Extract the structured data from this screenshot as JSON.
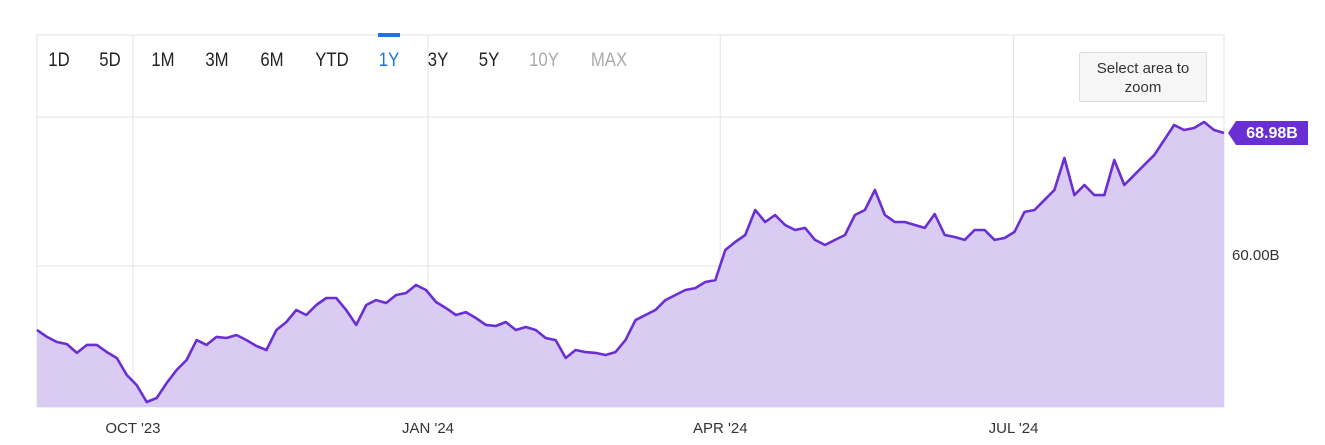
{
  "toolbar": {
    "ranges": [
      {
        "label": "1D",
        "state": "normal"
      },
      {
        "label": "5D",
        "state": "normal"
      },
      {
        "label": "1M",
        "state": "normal"
      },
      {
        "label": "3M",
        "state": "normal"
      },
      {
        "label": "6M",
        "state": "normal"
      },
      {
        "label": "YTD",
        "state": "normal"
      },
      {
        "label": "1Y",
        "state": "active"
      },
      {
        "label": "3Y",
        "state": "normal"
      },
      {
        "label": "5Y",
        "state": "normal"
      },
      {
        "label": "10Y",
        "state": "disabled"
      },
      {
        "label": "MAX",
        "state": "disabled"
      }
    ],
    "zoom_button": "Select area to zoom"
  },
  "chart_data": {
    "type": "area",
    "values": [
      55.68,
      55.21,
      54.87,
      54.73,
      54.13,
      54.67,
      54.67,
      54.19,
      53.79,
      52.64,
      51.96,
      50.82,
      51.09,
      52.1,
      52.98,
      53.65,
      55.0,
      54.67,
      55.21,
      55.14,
      55.34,
      55.0,
      54.6,
      54.33,
      55.68,
      56.22,
      57.03,
      56.69,
      57.37,
      57.84,
      57.84,
      57.03,
      56.02,
      57.37,
      57.7,
      57.5,
      58.04,
      58.18,
      58.72,
      58.38,
      57.57,
      57.16,
      56.69,
      56.89,
      56.49,
      56.02,
      55.95,
      56.22,
      55.68,
      55.88,
      55.68,
      55.14,
      55.0,
      53.79,
      54.33,
      54.19,
      54.13,
      53.99,
      54.19,
      55.0,
      56.35,
      56.69,
      57.03,
      57.7,
      58.04,
      58.38,
      58.51,
      58.92,
      59.05,
      61.08,
      61.62,
      62.09,
      63.78,
      62.97,
      63.44,
      62.77,
      62.43,
      62.57,
      61.76,
      61.42,
      61.76,
      62.09,
      63.44,
      63.78,
      65.13,
      63.44,
      62.97,
      62.97,
      62.77,
      62.57,
      63.51,
      62.09,
      61.96,
      61.76,
      62.43,
      62.43,
      61.76,
      61.89,
      62.3,
      63.65,
      63.78,
      64.46,
      65.13,
      67.29,
      64.79,
      65.47,
      64.79,
      64.79,
      67.16,
      65.47,
      66.14,
      66.82,
      67.49,
      68.51,
      69.52,
      69.18,
      69.32,
      69.72,
      69.18,
      68.98
    ],
    "value_labels": [
      null,
      null,
      null,
      null,
      null,
      null,
      null,
      null,
      null,
      null,
      null,
      null,
      null,
      null,
      null,
      null,
      null,
      null,
      null,
      null,
      null,
      null,
      null,
      null,
      null,
      null,
      null,
      null,
      null,
      null,
      null,
      null,
      null,
      null,
      null,
      null,
      null,
      null,
      null,
      null,
      null,
      null,
      null,
      null,
      null,
      null,
      null,
      null,
      null,
      null,
      null,
      null,
      null,
      null,
      null,
      null,
      null,
      null,
      null,
      null,
      null,
      null,
      null,
      null,
      null,
      null,
      null,
      null,
      null,
      null,
      null,
      null,
      null,
      null,
      null,
      null,
      null,
      null,
      null,
      null,
      null,
      null,
      null,
      null,
      null,
      null,
      null,
      null,
      null,
      null,
      null,
      null,
      null,
      null,
      null,
      null,
      null,
      null,
      null,
      null,
      null,
      null,
      null,
      null,
      null,
      null,
      null,
      null,
      null,
      null,
      null,
      null,
      null,
      null,
      null,
      null,
      null,
      null,
      null,
      "68.98B"
    ],
    "color": "#6a2fd3",
    "fill": "#d9cbf2",
    "xlim": [
      0,
      119
    ],
    "xticks": [
      {
        "value": 9.62,
        "label": "OCT '23"
      },
      {
        "value": 39.2,
        "label": "JAN '24"
      },
      {
        "value": 68.5,
        "label": "APR '24"
      },
      {
        "value": 97.9,
        "label": "JUL '24"
      }
    ],
    "ylim": [
      50.48,
      70.06
    ],
    "yticks": [
      {
        "value": 60,
        "label": "60.00B"
      }
    ],
    "grid": true
  }
}
